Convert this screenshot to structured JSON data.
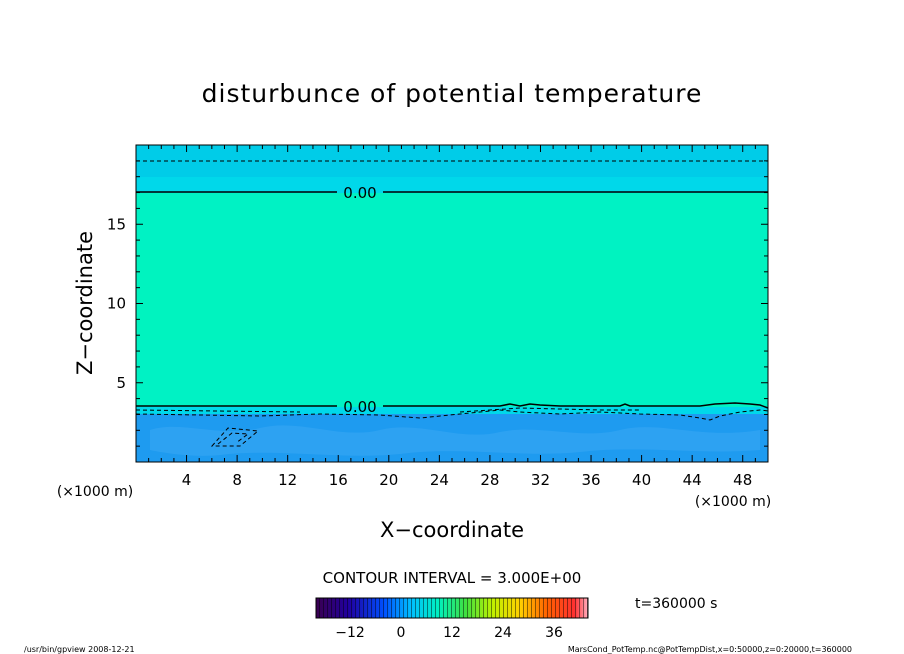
{
  "chart_data": {
    "type": "heatmap",
    "title": "disturbunce of potential temperature",
    "xlabel": "X−coordinate",
    "ylabel": "Z−coordinate",
    "x_unit": "(×1000 m)",
    "z_unit": "(×1000 m)",
    "xlim": [
      0,
      50
    ],
    "ylim": [
      0,
      20
    ],
    "x_ticks": [
      4,
      8,
      12,
      16,
      20,
      24,
      28,
      32,
      36,
      40,
      44,
      48
    ],
    "y_ticks": [
      5,
      10,
      15
    ],
    "contour_interval_text": "CONTOUR INTERVAL = 3.000E+00",
    "time_text": "t=360000 s",
    "colorbar_ticks": [
      -12,
      0,
      12,
      24,
      36
    ],
    "colorbar_range": [
      -20,
      44
    ],
    "contour_labels": [
      {
        "text": "0.00",
        "x": 17.5,
        "z": 17.0
      },
      {
        "text": "0.00",
        "x": 17.5,
        "z": 3.5
      }
    ],
    "colors": {
      "layer_lower": "#1e9bf0",
      "layer_transition": "#00d8ea",
      "layer_middle": "#00f2c4",
      "layer_upper": "#00d8ea"
    }
  },
  "footer": {
    "left": "/usr/bin/gpview   2008-12-21",
    "right": "MarsCond_PotTemp.nc@PotTempDist,x=0:50000,z=0:20000,t=360000"
  }
}
